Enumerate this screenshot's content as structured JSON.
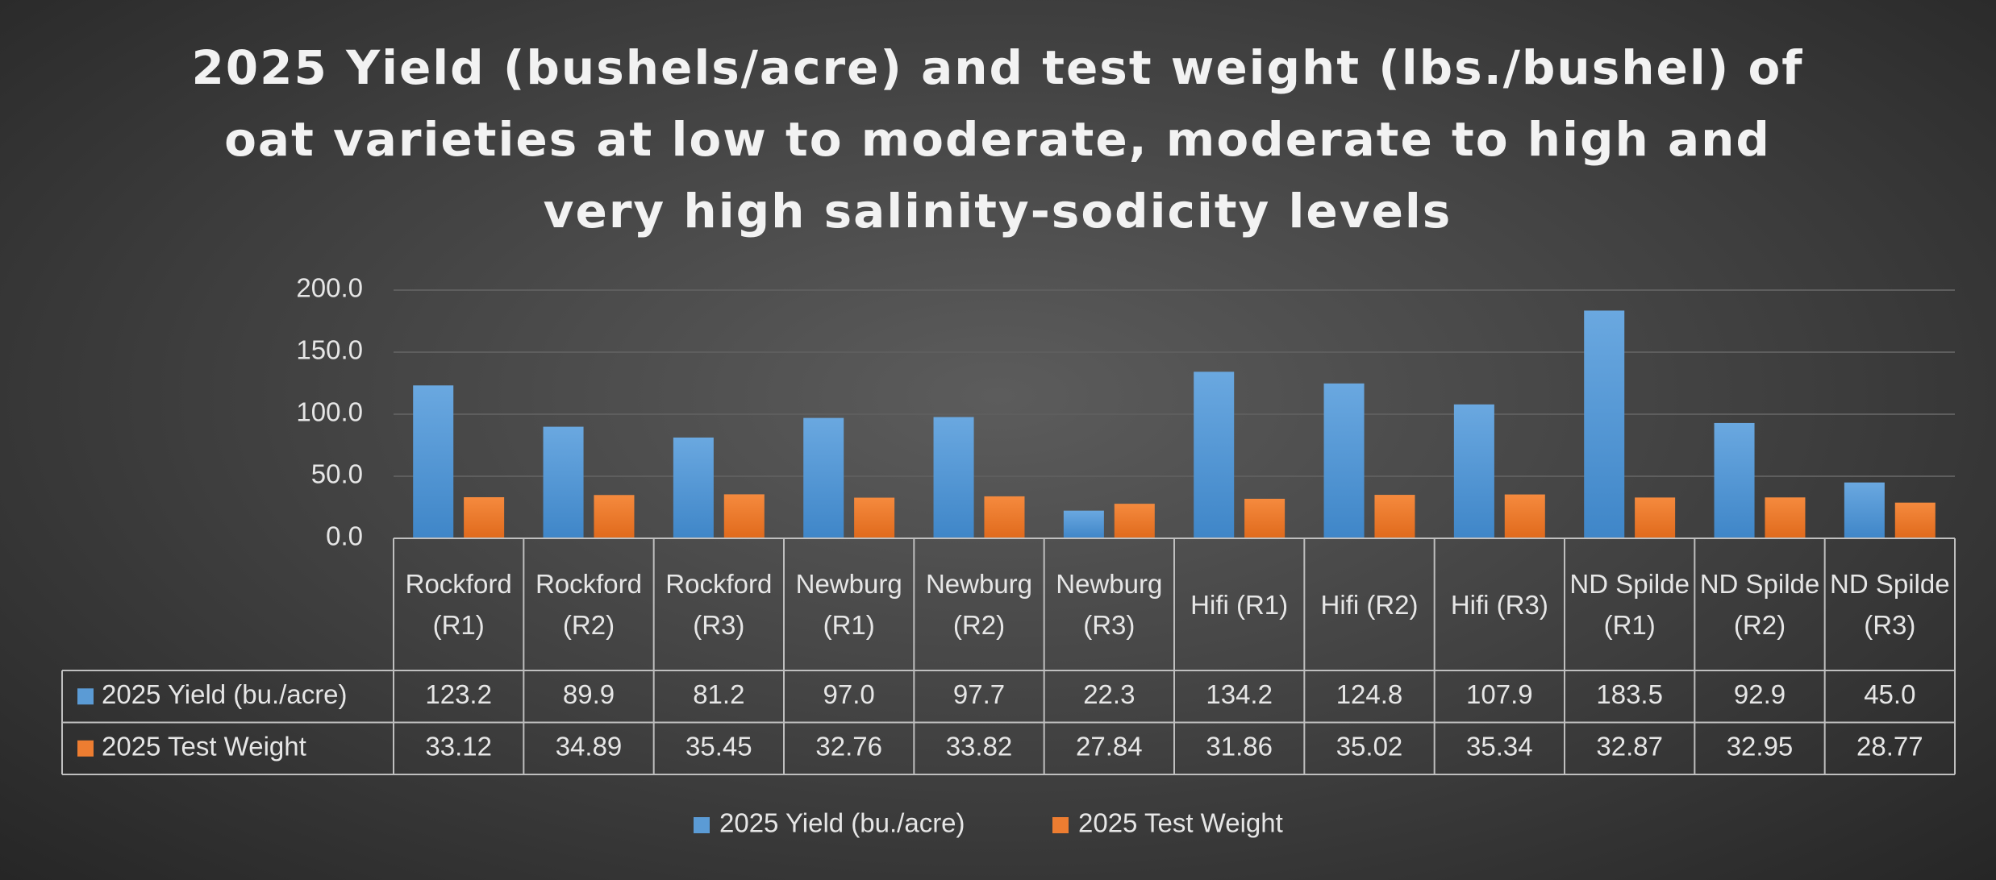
{
  "chart_data": {
    "type": "bar",
    "title": "2025 Yield (bushels/acre) and test weight (lbs./bushel) of oat varieties at low to moderate, moderate to high and very high salinity-sodicity levels",
    "categories": [
      "Rockford (R1)",
      "Rockford (R2)",
      "Rockford (R3)",
      "Newburg (R1)",
      "Newburg (R2)",
      "Newburg (R3)",
      "Hifi (R1)",
      "Hifi (R2)",
      "Hifi (R3)",
      "ND Spilde (R1)",
      "ND Spilde (R2)",
      "ND Spilde (R3)"
    ],
    "series": [
      {
        "name": "2025 Yield (bu./acre)",
        "color": "#5b9bd5",
        "values": [
          123.2,
          89.9,
          81.2,
          97.0,
          97.7,
          22.3,
          134.2,
          124.8,
          107.9,
          183.5,
          92.9,
          45.0
        ],
        "value_labels": [
          "123.2",
          "89.9",
          "81.2",
          "97.0",
          "97.7",
          "22.3",
          "134.2",
          "124.8",
          "107.9",
          "183.5",
          "92.9",
          "45.0"
        ]
      },
      {
        "name": "2025 Test Weight",
        "color": "#ed7d31",
        "values": [
          33.12,
          34.89,
          35.45,
          32.76,
          33.82,
          27.84,
          31.86,
          35.02,
          35.34,
          32.87,
          32.95,
          28.77
        ],
        "value_labels": [
          "33.12",
          "34.89",
          "35.45",
          "32.76",
          "33.82",
          "27.84",
          "31.86",
          "35.02",
          "35.34",
          "32.87",
          "32.95",
          "28.77"
        ]
      }
    ],
    "ylim": [
      0,
      200
    ],
    "yticks": [
      {
        "value": 0,
        "label": "0.0"
      },
      {
        "value": 50,
        "label": "50.0"
      },
      {
        "value": 100,
        "label": "100.0"
      },
      {
        "value": 150,
        "label": "150.0"
      },
      {
        "value": 200,
        "label": "200.0"
      }
    ],
    "grid": true,
    "legend": "bottom",
    "data_table": true
  }
}
